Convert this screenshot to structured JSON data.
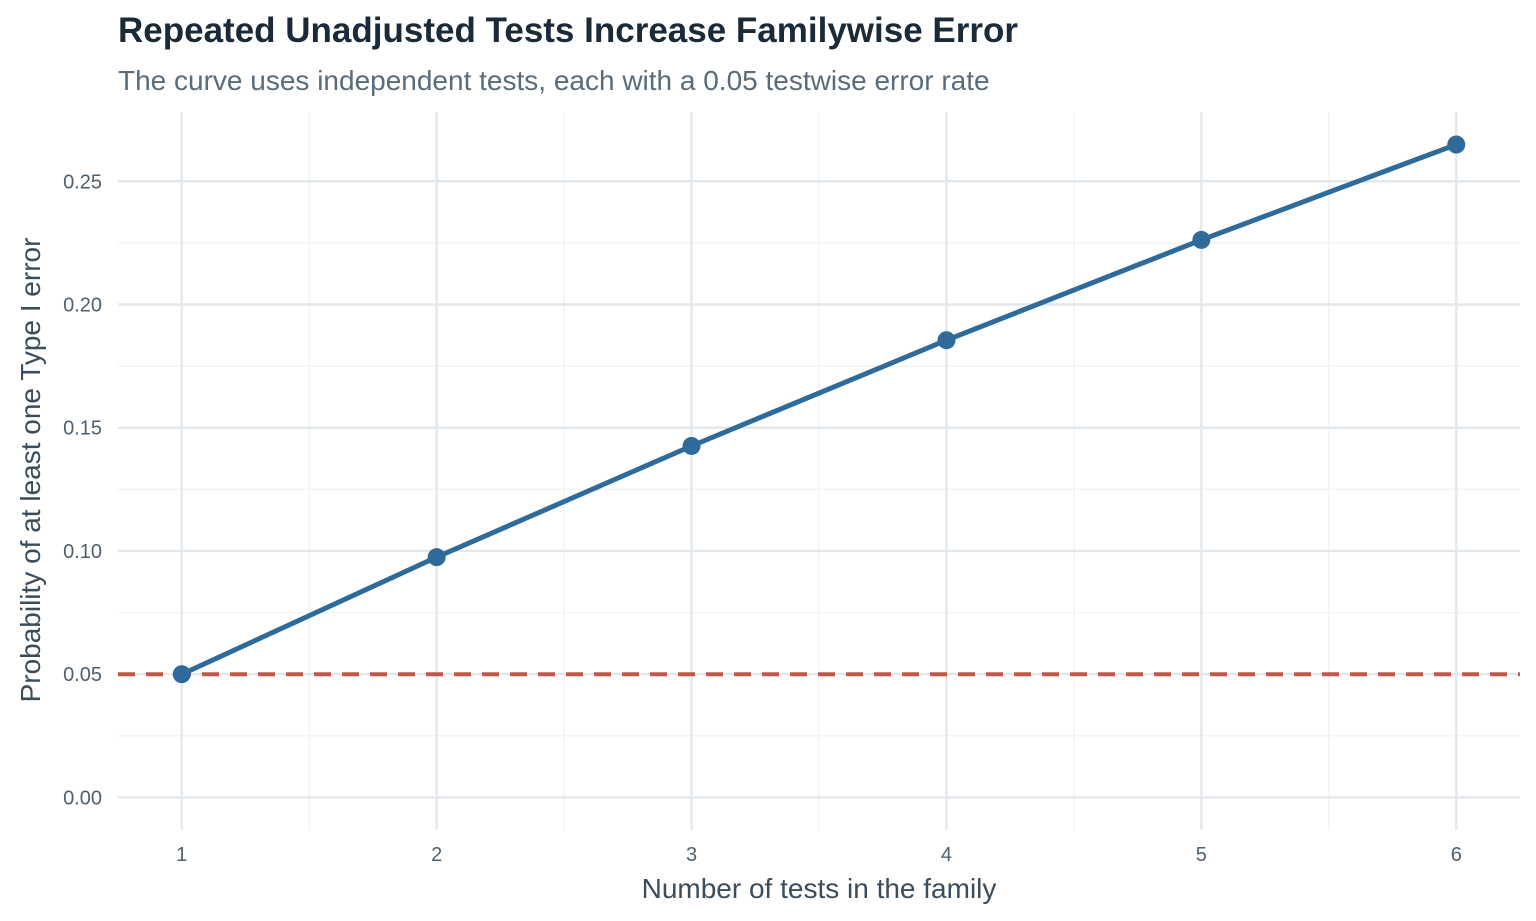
{
  "chart_data": {
    "type": "line",
    "title": "Repeated Unadjusted Tests Increase Familywise Error",
    "subtitle": "The curve uses independent tests, each with a 0.05 testwise error rate",
    "xlabel": "Number of tests in the family",
    "ylabel": "Probability of at least one Type I error",
    "x": [
      1,
      2,
      3,
      4,
      5,
      6
    ],
    "series": [
      {
        "values": [
          0.05,
          0.0975,
          0.1426,
          0.1855,
          0.2262,
          0.2649
        ],
        "color": "#2e6b9b",
        "markers": true
      }
    ],
    "reference_line": {
      "y": 0.05,
      "style": "dashed",
      "color": "#c0584a"
    },
    "x_ticks": [
      "1",
      "2",
      "3",
      "4",
      "5",
      "6"
    ],
    "y_ticks": [
      "0.00",
      "0.05",
      "0.10",
      "0.15",
      "0.20",
      "0.25"
    ],
    "y_tick_values": [
      0,
      0.05,
      0.1,
      0.15,
      0.2,
      0.25
    ],
    "xlim": [
      0.75,
      6.25
    ],
    "ylim": [
      -0.0132,
      0.2781
    ],
    "grid": true,
    "legend": "none"
  }
}
